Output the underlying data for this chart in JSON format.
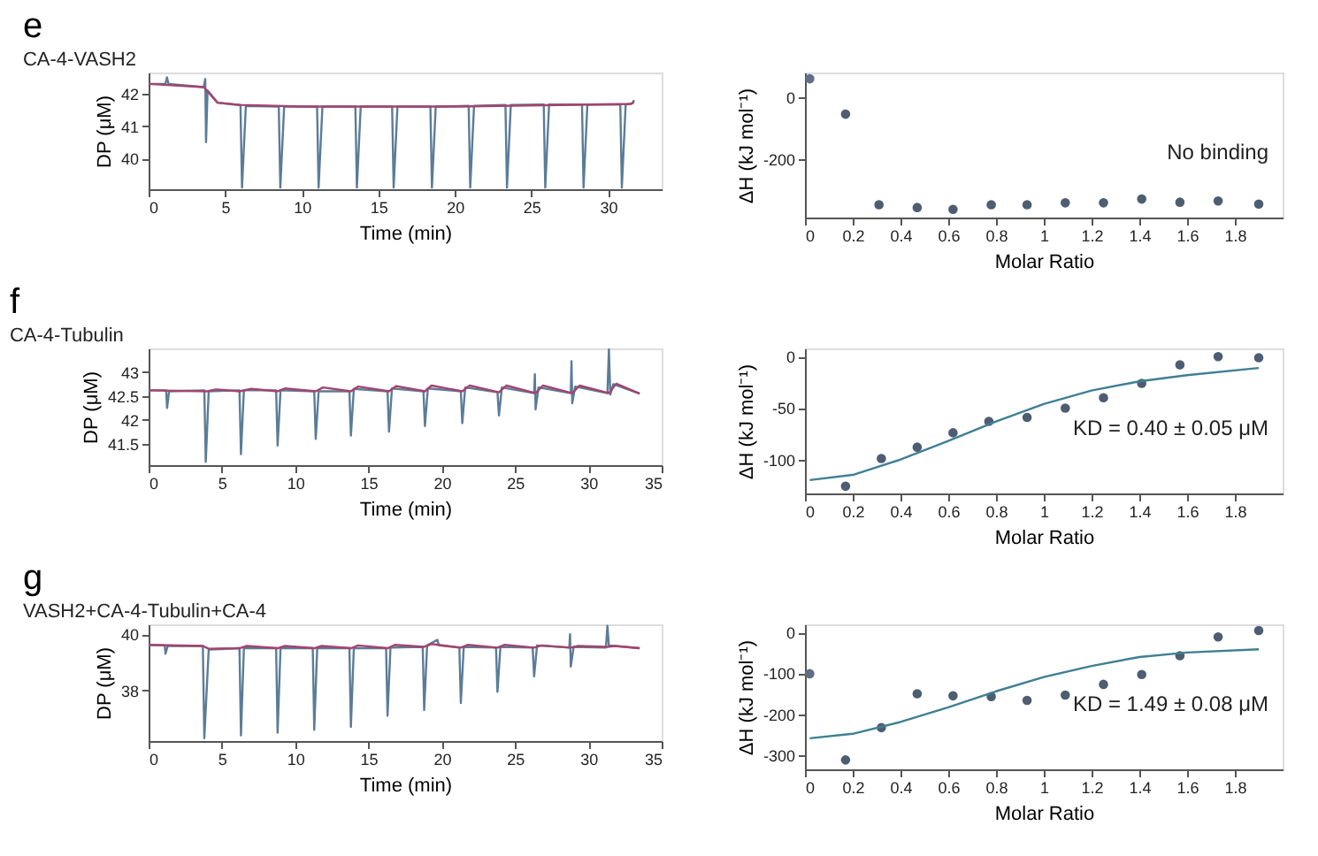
{
  "chart_data": [
    {
      "type": "line",
      "title": "e",
      "subtitle": "CA-4-VASH2",
      "xlabel": "Time (min)",
      "ylabel": "DP (μM)",
      "xlim": [
        0,
        33.5
      ],
      "ylim": [
        39.05,
        42.65
      ],
      "xticks": [
        0,
        5,
        10,
        15,
        20,
        25,
        30
      ],
      "yticks": [
        40,
        41,
        42
      ],
      "series": [
        {
          "color": "#5b7c98",
          "x": [
            0,
            1.1,
            1.2,
            1.3,
            3.6,
            3.7,
            3.75,
            3.85,
            4.5,
            6.0,
            6.1,
            6.35,
            8.5,
            8.6,
            8.85,
            11.0,
            11.1,
            11.35,
            13.5,
            13.6,
            13.85,
            15.9,
            16.0,
            16.25,
            18.4,
            18.5,
            18.75,
            20.9,
            21.0,
            21.25,
            23.3,
            23.4,
            23.65,
            25.8,
            25.9,
            26.15,
            28.3,
            28.4,
            28.65,
            30.8,
            30.9,
            31.15,
            31.6,
            31.7
          ],
          "values": [
            42.3,
            42.3,
            42.5,
            42.3,
            42.2,
            42.45,
            40.5,
            42.1,
            41.72,
            41.64,
            39.1,
            41.62,
            41.6,
            39.1,
            41.6,
            41.6,
            39.1,
            41.6,
            41.6,
            39.1,
            41.6,
            41.6,
            39.1,
            41.6,
            41.6,
            39.1,
            41.6,
            41.62,
            39.1,
            41.62,
            41.65,
            39.1,
            41.65,
            41.66,
            39.1,
            41.66,
            41.66,
            39.1,
            41.66,
            41.66,
            39.1,
            41.66,
            41.7,
            41.8
          ]
        },
        {
          "color": "#a3446e",
          "x": [
            0,
            3.6,
            4.5,
            6,
            10,
            20,
            31.5,
            31.7
          ],
          "values": [
            42.3,
            42.2,
            41.72,
            41.65,
            41.6,
            41.6,
            41.68,
            41.75
          ]
        }
      ]
    },
    {
      "type": "scatter",
      "xlabel": "Molar Ratio",
      "ylabel": "ΔH (kJ mol⁻¹)",
      "xlim": [
        0,
        2.0
      ],
      "ylim": [
        -385,
        78
      ],
      "xticks": [
        0,
        0.2,
        0.4,
        0.6,
        0.8,
        1,
        1.2,
        1.4,
        1.6,
        1.8
      ],
      "yticks": [
        0,
        -200
      ],
      "annotations": [
        "No binding"
      ],
      "series": [
        {
          "color": "#5f6f86",
          "x": [
            0.02
          ],
          "values": [
            58
          ]
        },
        {
          "color": "#4d5d72",
          "x": [
            0.17,
            0.31,
            0.47,
            0.62,
            0.78,
            0.93,
            1.09,
            1.25,
            1.41,
            1.57,
            1.73,
            1.9
          ],
          "values": [
            -55,
            -344,
            -353,
            -359,
            -344,
            -344,
            -338,
            -338,
            -326,
            -336,
            -332,
            -342
          ]
        }
      ]
    },
    {
      "type": "line",
      "title": "f",
      "subtitle": "CA-4-Tubulin",
      "xlabel": "Time (min)",
      "ylabel": "DP (μM)",
      "xlim": [
        0,
        35
      ],
      "ylim": [
        41.05,
        43.5
      ],
      "xticks": [
        0,
        5,
        10,
        15,
        20,
        25,
        30,
        35
      ],
      "yticks": [
        41.5,
        42,
        42.5,
        43
      ],
      "series": [
        {
          "color": "#5b7c98",
          "x": [
            0,
            1.2,
            1.26,
            1.4,
            3.8,
            3.9,
            4.1,
            6.2,
            6.3,
            6.5,
            8.7,
            8.8,
            9.0,
            11.3,
            11.4,
            11.6,
            13.7,
            13.8,
            14.0,
            16.3,
            16.4,
            16.6,
            18.75,
            18.85,
            19.05,
            21.3,
            21.4,
            21.6,
            23.8,
            23.9,
            24.1,
            26.3,
            26.35,
            26.4,
            26.6,
            28.8,
            28.85,
            28.9,
            29.1,
            31.3,
            31.4,
            31.5,
            31.7,
            33.5
          ],
          "values": [
            42.62,
            42.62,
            42.25,
            42.6,
            42.62,
            41.12,
            42.6,
            42.62,
            41.28,
            42.62,
            42.62,
            41.46,
            42.62,
            42.6,
            41.6,
            42.6,
            42.6,
            41.67,
            42.65,
            42.6,
            41.75,
            42.66,
            42.6,
            41.87,
            42.66,
            42.6,
            41.93,
            42.68,
            42.58,
            42.09,
            42.68,
            42.56,
            42.96,
            42.22,
            42.68,
            42.56,
            43.23,
            42.35,
            42.7,
            42.56,
            43.48,
            42.53,
            42.75,
            42.55
          ]
        },
        {
          "color": "#a3446e",
          "x": [
            0,
            4,
            4.6,
            6.2,
            7,
            8.8,
            9.3,
            11.4,
            11.9,
            13.8,
            14.3,
            16.4,
            16.9,
            18.85,
            19.3,
            21.4,
            21.9,
            23.9,
            24.4,
            26.4,
            26.9,
            28.9,
            29.4,
            31.4,
            31.9,
            33.5
          ],
          "values": [
            42.62,
            42.6,
            42.64,
            42.6,
            42.65,
            42.6,
            42.66,
            42.6,
            42.68,
            42.6,
            42.7,
            42.6,
            42.71,
            42.6,
            42.72,
            42.6,
            42.72,
            42.58,
            42.72,
            42.56,
            42.72,
            42.56,
            42.72,
            42.56,
            42.76,
            42.55
          ]
        }
      ]
    },
    {
      "type": "scatter",
      "xlabel": "Molar Ratio",
      "ylabel": "ΔH (kJ mol⁻¹)",
      "xlim": [
        0,
        2.0
      ],
      "ylim": [
        -133,
        8
      ],
      "xticks": [
        0,
        0.2,
        0.4,
        0.6,
        0.8,
        1,
        1.2,
        1.4,
        1.6,
        1.8
      ],
      "yticks": [
        0,
        -50,
        -100
      ],
      "annotations": [
        "KD = 0.40 ± 0.05 μM"
      ],
      "series": [
        {
          "color": "#4d5d72",
          "x": [
            0.17,
            0.32,
            0.47,
            0.62,
            0.77,
            0.93,
            1.09,
            1.25,
            1.41,
            1.57,
            1.73,
            1.9
          ],
          "values": [
            -126,
            -99,
            -88,
            -74,
            -63,
            -59,
            -50,
            -40,
            -26,
            -8,
            0,
            -1
          ]
        },
        {
          "type": "line",
          "color": "#3f7f93",
          "x": [
            0.02,
            0.2,
            0.4,
            0.6,
            0.8,
            1.0,
            1.2,
            1.4,
            1.6,
            1.9
          ],
          "values": [
            -120,
            -115,
            -100,
            -82,
            -63,
            -46,
            -33,
            -24,
            -18,
            -11
          ]
        }
      ]
    },
    {
      "type": "line",
      "title": "g",
      "subtitle": "VASH2+CA-4-Tubulin+CA-4",
      "xlabel": "Time (min)",
      "ylabel": "DP (μM)",
      "xlim": [
        0,
        35
      ],
      "ylim": [
        36.2,
        40.35
      ],
      "xticks": [
        0,
        5,
        10,
        15,
        20,
        25,
        30,
        35
      ],
      "yticks": [
        38,
        40
      ],
      "series": [
        {
          "color": "#5b7c98",
          "x": [
            0,
            1.1,
            1.15,
            1.3,
            3.7,
            3.8,
            4.1,
            6.2,
            6.3,
            6.5,
            8.7,
            8.8,
            9.0,
            11.2,
            11.3,
            11.5,
            13.7,
            13.8,
            14,
            16.2,
            16.3,
            16.5,
            18.7,
            18.8,
            19,
            19.7,
            19.8,
            21.2,
            21.3,
            21.5,
            23.7,
            23.8,
            24,
            26.2,
            26.3,
            26.5,
            28.7,
            28.75,
            28.8,
            29,
            31.2,
            31.3,
            31.4,
            33.5
          ],
          "values": [
            39.62,
            39.6,
            39.3,
            39.58,
            39.58,
            36.3,
            39.45,
            39.5,
            36.4,
            39.5,
            39.5,
            36.5,
            39.5,
            39.5,
            36.6,
            39.5,
            39.5,
            36.7,
            39.5,
            39.5,
            37.1,
            39.52,
            39.55,
            37.3,
            39.6,
            39.8,
            39.6,
            39.52,
            37.55,
            39.55,
            39.52,
            37.95,
            39.55,
            39.52,
            38.5,
            39.6,
            39.52,
            40.0,
            38.85,
            39.55,
            39.52,
            40.3,
            39.6,
            39.5
          ]
        },
        {
          "color": "#a3446e",
          "x": [
            0,
            3.7,
            4.1,
            6.2,
            6.7,
            8.8,
            9.3,
            11.3,
            11.8,
            13.8,
            14.3,
            16.3,
            16.8,
            18.8,
            19.3,
            21.3,
            21.8,
            23.8,
            24.3,
            26.3,
            26.8,
            28.8,
            29.3,
            31.3,
            31.8,
            33.5
          ],
          "values": [
            39.62,
            39.58,
            39.48,
            39.5,
            39.58,
            39.5,
            39.58,
            39.5,
            39.58,
            39.5,
            39.6,
            39.5,
            39.62,
            39.55,
            39.65,
            39.52,
            39.62,
            39.52,
            39.62,
            39.52,
            39.6,
            39.52,
            39.58,
            39.55,
            39.58,
            39.5
          ]
        }
      ]
    },
    {
      "type": "scatter",
      "xlabel": "Molar Ratio",
      "ylabel": "ΔH (kJ mol⁻¹)",
      "xlim": [
        0,
        2.0
      ],
      "ylim": [
        -335,
        20
      ],
      "xticks": [
        0,
        0.2,
        0.4,
        0.6,
        0.8,
        1,
        1.2,
        1.4,
        1.6,
        1.8
      ],
      "yticks": [
        0,
        -100,
        -200,
        -300
      ],
      "annotations": [
        "KD = 1.49 ± 0.08 μM"
      ],
      "series": [
        {
          "color": "#5f6f86",
          "x": [
            0.02
          ],
          "values": [
            -101
          ]
        },
        {
          "color": "#4d5d72",
          "x": [
            0.17,
            0.32,
            0.47,
            0.62,
            0.78,
            0.93,
            1.09,
            1.25,
            1.41,
            1.57,
            1.73,
            1.9
          ],
          "values": [
            -312,
            -233,
            -150,
            -155,
            -157,
            -166,
            -153,
            -127,
            -103,
            -57,
            -11,
            5
          ]
        },
        {
          "type": "line",
          "color": "#3f7f93",
          "x": [
            0.02,
            0.2,
            0.4,
            0.6,
            0.8,
            1.0,
            1.2,
            1.4,
            1.6,
            1.9
          ],
          "values": [
            -259,
            -248,
            -219,
            -183,
            -144,
            -109,
            -82,
            -60,
            -49,
            -41
          ]
        }
      ]
    }
  ]
}
